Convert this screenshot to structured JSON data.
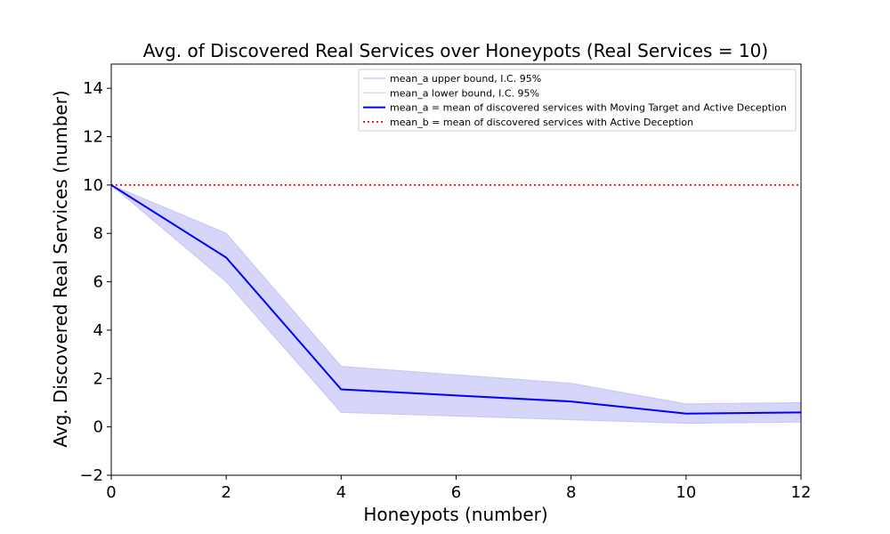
{
  "chart_data": {
    "type": "line",
    "title": "Avg. of Discovered Real Services over Honeypots (Real Services = 10)",
    "xlabel": "Honeypots (number)",
    "ylabel": "Avg. Discovered Real Services (number)",
    "xlim": [
      0,
      12
    ],
    "ylim": [
      -2,
      15
    ],
    "xticks": [
      0,
      2,
      4,
      6,
      8,
      10,
      12
    ],
    "yticks": [
      -2,
      0,
      2,
      4,
      6,
      8,
      10,
      12,
      14
    ],
    "x": [
      0,
      2,
      4,
      8,
      10,
      12
    ],
    "grid": false,
    "legend_position": "top-right",
    "series": [
      {
        "name": "mean_a upper bound, I.C. 95%",
        "values": [
          10,
          8.0,
          2.5,
          1.8,
          0.95,
          1.0
        ],
        "color": "#c8c8f5"
      },
      {
        "name": "mean_a lower bound, I.C. 95%",
        "values": [
          10,
          6.0,
          0.6,
          0.3,
          0.15,
          0.2
        ],
        "color": "#dcdcdc"
      },
      {
        "name": "mean_a = mean of discovered services with Moving Target and Active Deception",
        "values": [
          10,
          7.0,
          1.55,
          1.05,
          0.55,
          0.6
        ],
        "color": "#0000ff"
      },
      {
        "name": "mean_b = mean of discovered services with Active Deception",
        "constant": 10,
        "color": "#ff0000",
        "style": "dotted"
      }
    ],
    "band_color": "#d6d6fb"
  }
}
